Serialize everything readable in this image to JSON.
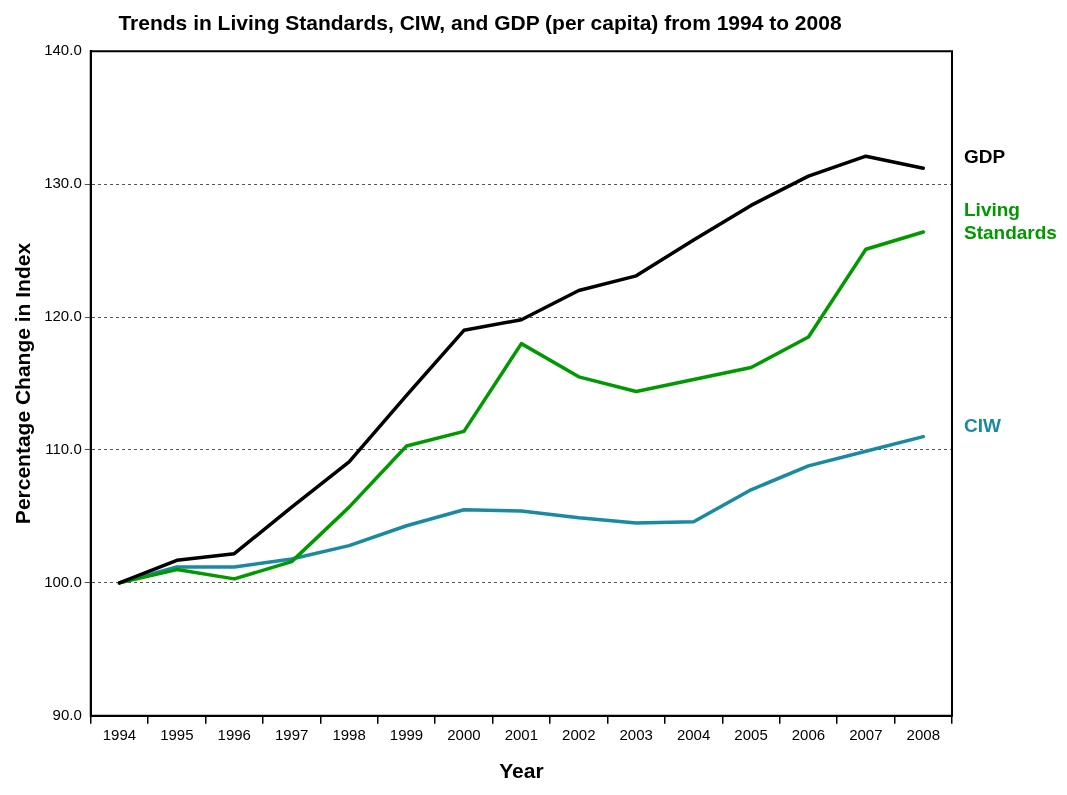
{
  "chart_data": {
    "type": "line",
    "title": "Trends in Living Standards, CIW, and GDP (per capita) from 1994 to 2008",
    "xlabel": "Year",
    "ylabel": "Percentage Change in Index",
    "categories": [
      "1994",
      "1995",
      "1996",
      "1997",
      "1998",
      "1999",
      "2000",
      "2001",
      "2002",
      "2003",
      "2004",
      "2005",
      "2006",
      "2007",
      "2008"
    ],
    "series": [
      {
        "name": "GDP",
        "color": "#000000",
        "values": [
          100,
          101.7,
          102.2,
          105.7,
          109.1,
          114.1,
          119.0,
          119.8,
          122.0,
          123.1,
          125.8,
          128.4,
          130.6,
          132.1,
          131.2
        ]
      },
      {
        "name": "Living Standards",
        "color": "#009900",
        "values": [
          100,
          101.0,
          100.3,
          101.6,
          105.7,
          110.3,
          111.4,
          118.0,
          115.5,
          114.4,
          115.3,
          116.2,
          118.5,
          125.1,
          126.4
        ]
      },
      {
        "name": "CIW",
        "color": "#1a8aa2",
        "values": [
          100,
          101.2,
          101.2,
          101.8,
          102.8,
          104.3,
          105.5,
          105.4,
          104.9,
          104.5,
          104.6,
          107.0,
          108.8,
          109.9,
          111.0
        ]
      }
    ],
    "ylim": [
      90,
      140
    ],
    "yticks": [
      {
        "value": 90,
        "label": "90.0"
      },
      {
        "value": 100,
        "label": "100.0"
      },
      {
        "value": 110,
        "label": "110.0"
      },
      {
        "value": 120,
        "label": "120.0"
      },
      {
        "value": 130,
        "label": "130.0"
      },
      {
        "value": 140,
        "label": "140.0"
      }
    ],
    "grid": "y",
    "legend": false,
    "marker": "none",
    "line_style": "solid"
  }
}
